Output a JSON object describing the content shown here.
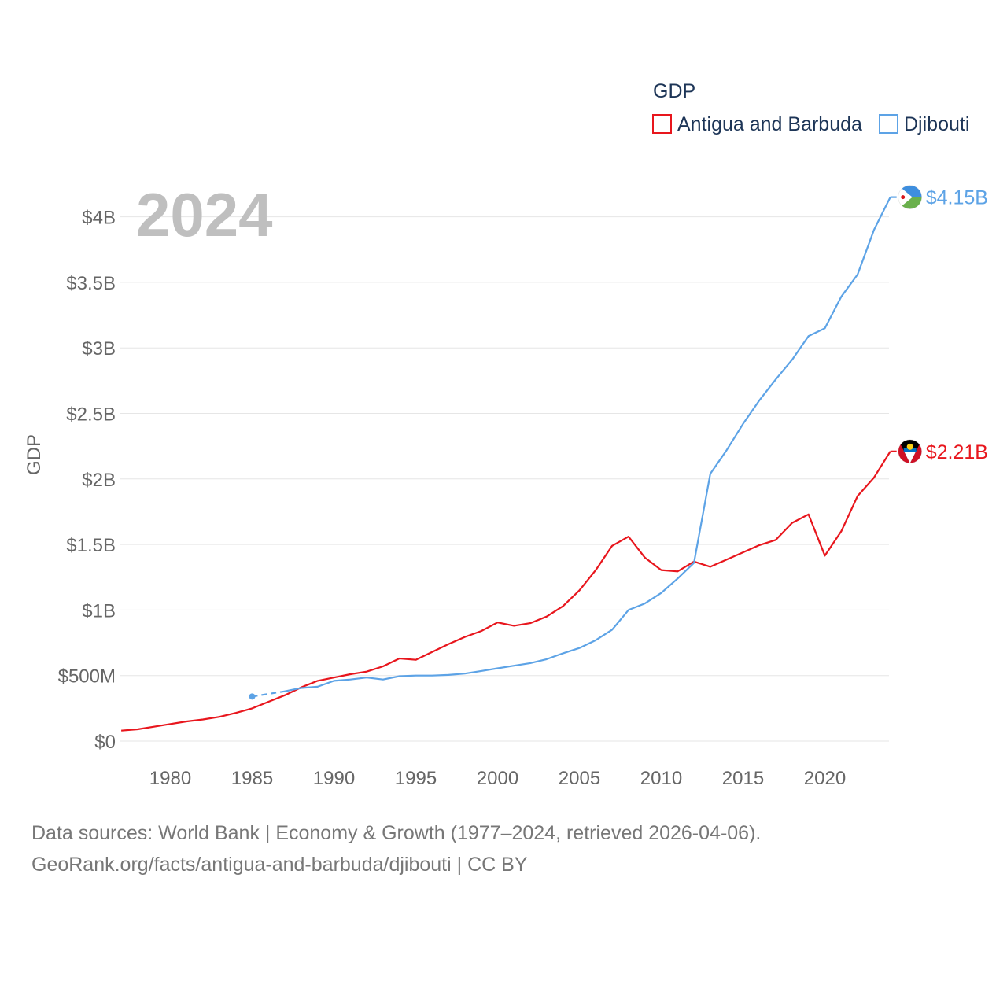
{
  "chart_data": {
    "type": "line",
    "title": "",
    "xlabel": "",
    "ylabel": "GDP",
    "year_overlay": "2024",
    "xlim": [
      1977,
      2024
    ],
    "ylim": [
      0,
      4300000000
    ],
    "x_ticks": [
      1980,
      1985,
      1990,
      1995,
      2000,
      2005,
      2010,
      2015,
      2020
    ],
    "x_tick_labels": [
      "1980",
      "1985",
      "1990",
      "1995",
      "2000",
      "2005",
      "2010",
      "2015",
      "2020"
    ],
    "y_ticks": [
      0,
      500000000,
      1000000000,
      1500000000,
      2000000000,
      2500000000,
      3000000000,
      3500000000,
      4000000000
    ],
    "y_tick_labels": [
      "$0",
      "$500M",
      "$1B",
      "$1.5B",
      "$2B",
      "$2.5B",
      "$3B",
      "$3.5B",
      "$4B"
    ],
    "legend": {
      "title": "GDP",
      "position": "top-right"
    },
    "series": [
      {
        "name": "Antigua and Barbuda",
        "color": "#e8161d",
        "end_label": "$2.21B",
        "flag_icon": "antigua-and-barbuda-flag-icon",
        "points": [
          [
            1977,
            80000000
          ],
          [
            1978,
            90000000
          ],
          [
            1979,
            110000000
          ],
          [
            1980,
            130000000
          ],
          [
            1981,
            150000000
          ],
          [
            1982,
            165000000
          ],
          [
            1983,
            185000000
          ],
          [
            1984,
            215000000
          ],
          [
            1985,
            250000000
          ],
          [
            1986,
            300000000
          ],
          [
            1987,
            350000000
          ],
          [
            1988,
            410000000
          ],
          [
            1989,
            460000000
          ],
          [
            1990,
            485000000
          ],
          [
            1991,
            510000000
          ],
          [
            1992,
            530000000
          ],
          [
            1993,
            570000000
          ],
          [
            1994,
            630000000
          ],
          [
            1995,
            620000000
          ],
          [
            1996,
            680000000
          ],
          [
            1997,
            740000000
          ],
          [
            1998,
            795000000
          ],
          [
            1999,
            840000000
          ],
          [
            2000,
            905000000
          ],
          [
            2001,
            880000000
          ],
          [
            2002,
            900000000
          ],
          [
            2003,
            950000000
          ],
          [
            2004,
            1030000000
          ],
          [
            2005,
            1150000000
          ],
          [
            2006,
            1305000000
          ],
          [
            2007,
            1490000000
          ],
          [
            2008,
            1560000000
          ],
          [
            2009,
            1400000000
          ],
          [
            2010,
            1305000000
          ],
          [
            2011,
            1295000000
          ],
          [
            2012,
            1370000000
          ],
          [
            2013,
            1330000000
          ],
          [
            2014,
            1385000000
          ],
          [
            2015,
            1440000000
          ],
          [
            2016,
            1495000000
          ],
          [
            2017,
            1535000000
          ],
          [
            2018,
            1665000000
          ],
          [
            2019,
            1730000000
          ],
          [
            2020,
            1415000000
          ],
          [
            2021,
            1600000000
          ],
          [
            2022,
            1870000000
          ],
          [
            2023,
            2010000000
          ],
          [
            2024,
            2210000000
          ]
        ]
      },
      {
        "name": "Djibouti",
        "color": "#5da3e6",
        "end_label": "$4.15B",
        "flag_icon": "djibouti-flag-icon",
        "gap_start": [
          1985,
          340000000
        ],
        "points": [
          [
            1987,
            380000000
          ],
          [
            1988,
            405000000
          ],
          [
            1989,
            415000000
          ],
          [
            1990,
            460000000
          ],
          [
            1991,
            470000000
          ],
          [
            1992,
            485000000
          ],
          [
            1993,
            470000000
          ],
          [
            1994,
            495000000
          ],
          [
            1995,
            500000000
          ],
          [
            1996,
            500000000
          ],
          [
            1997,
            505000000
          ],
          [
            1998,
            515000000
          ],
          [
            1999,
            535000000
          ],
          [
            2000,
            555000000
          ],
          [
            2001,
            575000000
          ],
          [
            2002,
            595000000
          ],
          [
            2003,
            625000000
          ],
          [
            2004,
            670000000
          ],
          [
            2005,
            710000000
          ],
          [
            2006,
            770000000
          ],
          [
            2007,
            850000000
          ],
          [
            2008,
            1000000000
          ],
          [
            2009,
            1050000000
          ],
          [
            2010,
            1130000000
          ],
          [
            2011,
            1240000000
          ],
          [
            2012,
            1360000000
          ],
          [
            2013,
            2040000000
          ],
          [
            2014,
            2220000000
          ],
          [
            2015,
            2420000000
          ],
          [
            2016,
            2600000000
          ],
          [
            2017,
            2760000000
          ],
          [
            2018,
            2910000000
          ],
          [
            2019,
            3090000000
          ],
          [
            2020,
            3150000000
          ],
          [
            2021,
            3390000000
          ],
          [
            2022,
            3560000000
          ],
          [
            2023,
            3900000000
          ],
          [
            2024,
            4150000000
          ]
        ]
      }
    ]
  },
  "footer": {
    "sources_line": "Data sources: World Bank | Economy & Growth (1977–2024, retrieved 2026-04-06).",
    "attribution_line": "GeoRank.org/facts/antigua-and-barbuda/djibouti | CC BY"
  }
}
